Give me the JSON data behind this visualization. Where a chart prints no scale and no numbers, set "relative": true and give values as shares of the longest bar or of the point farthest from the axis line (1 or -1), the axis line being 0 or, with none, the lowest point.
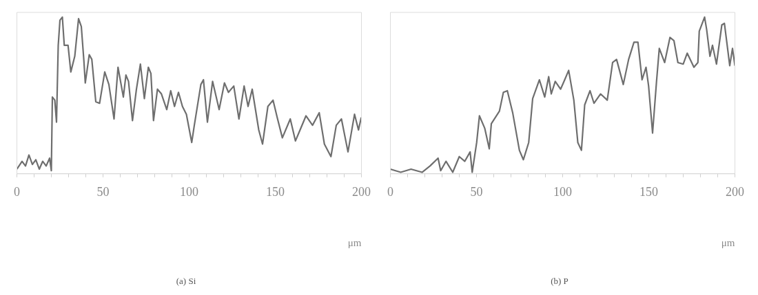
{
  "chart_data": [
    {
      "type": "line",
      "title": "(a) Si",
      "xlabel": "μm",
      "relative": true,
      "xlim": [
        0,
        200
      ],
      "xticks": [
        0,
        {
          "value": 10,
          "label": null
        },
        {
          "value": 20,
          "label": null
        },
        {
          "value": 30,
          "label": null
        },
        {
          "value": 40,
          "label": null
        },
        50,
        {
          "value": 60,
          "label": null
        },
        {
          "value": 70,
          "label": null
        },
        {
          "value": 80,
          "label": null
        },
        {
          "value": 90,
          "label": null
        },
        100,
        {
          "value": 110,
          "label": null
        },
        {
          "value": 120,
          "label": null
        },
        {
          "value": 130,
          "label": null
        },
        {
          "value": 140,
          "label": null
        },
        150,
        {
          "value": 160,
          "label": null
        },
        {
          "value": 170,
          "label": null
        },
        {
          "value": 180,
          "label": null
        },
        {
          "value": 190,
          "label": null
        },
        200
      ],
      "grid": false,
      "legend": false,
      "marker": "none",
      "line_style": "solid",
      "series": [
        {
          "color": "#6e6e6e",
          "x": [
            0,
            3,
            5,
            7,
            9,
            11,
            13,
            15,
            17,
            19,
            20,
            20.6,
            22,
            23,
            24,
            25,
            26.4,
            27.5,
            29.7,
            31.3,
            33.6,
            35.8,
            37.4,
            38.9,
            39.7,
            42,
            43.5,
            45.8,
            48,
            51,
            53.4,
            56.4,
            58.7,
            61.8,
            63.3,
            64.8,
            67.1,
            69.4,
            71.7,
            74,
            76.3,
            77.8,
            79.3,
            81.6,
            83.9,
            87,
            89.3,
            91.5,
            93.8,
            96.1,
            98.4,
            101.5,
            103,
            106.8,
            108.3,
            110.6,
            113.6,
            117.4,
            120.5,
            122.8,
            125.9,
            128.9,
            131.9,
            134.2,
            136.6,
            140.4,
            142.6,
            145.7,
            148.7,
            151.1,
            154.1,
            158.7,
            161.7,
            164,
            167.8,
            171.6,
            175.5,
            178.5,
            182.3,
            185.4,
            188.4,
            192.2,
            196,
            198.3,
            199.9
          ],
          "values": [
            0.03,
            0.08,
            0.05,
            0.12,
            0.06,
            0.09,
            0.03,
            0.08,
            0.05,
            0.1,
            0.02,
            0.49,
            0.47,
            0.33,
            0.82,
            0.98,
            1.0,
            0.82,
            0.82,
            0.65,
            0.75,
            0.99,
            0.94,
            0.72,
            0.58,
            0.76,
            0.73,
            0.46,
            0.45,
            0.65,
            0.57,
            0.35,
            0.68,
            0.49,
            0.63,
            0.59,
            0.34,
            0.54,
            0.7,
            0.48,
            0.68,
            0.64,
            0.34,
            0.54,
            0.51,
            0.41,
            0.53,
            0.43,
            0.52,
            0.43,
            0.38,
            0.2,
            0.31,
            0.57,
            0.6,
            0.33,
            0.59,
            0.41,
            0.58,
            0.52,
            0.56,
            0.35,
            0.56,
            0.43,
            0.54,
            0.28,
            0.19,
            0.43,
            0.47,
            0.36,
            0.23,
            0.35,
            0.21,
            0.27,
            0.37,
            0.31,
            0.39,
            0.19,
            0.11,
            0.31,
            0.35,
            0.14,
            0.38,
            0.28,
            0.36
          ]
        }
      ]
    },
    {
      "type": "line",
      "title": "(b) P",
      "xlabel": "μm",
      "relative": true,
      "xlim": [
        0,
        200
      ],
      "xticks": [
        0,
        {
          "value": 10,
          "label": null
        },
        {
          "value": 20,
          "label": null
        },
        {
          "value": 30,
          "label": null
        },
        {
          "value": 40,
          "label": null
        },
        50,
        {
          "value": 60,
          "label": null
        },
        {
          "value": 70,
          "label": null
        },
        {
          "value": 80,
          "label": null
        },
        {
          "value": 90,
          "label": null
        },
        100,
        {
          "value": 110,
          "label": null
        },
        {
          "value": 120,
          "label": null
        },
        {
          "value": 130,
          "label": null
        },
        {
          "value": 140,
          "label": null
        },
        150,
        {
          "value": 160,
          "label": null
        },
        {
          "value": 170,
          "label": null
        },
        {
          "value": 180,
          "label": null
        },
        {
          "value": 190,
          "label": null
        },
        200
      ],
      "grid": false,
      "legend": false,
      "marker": "none",
      "line_style": "solid",
      "series": [
        {
          "color": "#6e6e6e",
          "x": [
            0,
            6,
            12,
            18.4,
            23,
            27.7,
            29.2,
            32.3,
            36.2,
            40,
            43.2,
            46.3,
            47.5,
            50.1,
            51.7,
            54.8,
            57.4,
            58.6,
            63.3,
            65.6,
            67.9,
            71,
            74.9,
            77.2,
            80.3,
            82.6,
            86.5,
            89.6,
            91.9,
            93.4,
            95.7,
            98.8,
            101.2,
            103.5,
            106.5,
            108.8,
            110.9,
            112.8,
            115.9,
            118.2,
            122,
            125.9,
            129,
            131.3,
            135.2,
            138.3,
            141.4,
            143.7,
            146.1,
            148.4,
            149.9,
            152.2,
            154.5,
            156.1,
            159.2,
            162.3,
            164.6,
            166.9,
            170,
            172.3,
            176.2,
            178.5,
            179.3,
            182.4,
            183.6,
            185.5,
            187,
            189.3,
            192.4,
            193.9,
            197,
            198.6,
            200
          ],
          "values": [
            0.03,
            0.01,
            0.03,
            0.01,
            0.05,
            0.1,
            0.02,
            0.08,
            0.01,
            0.11,
            0.08,
            0.14,
            0.01,
            0.2,
            0.37,
            0.29,
            0.16,
            0.32,
            0.4,
            0.52,
            0.53,
            0.39,
            0.15,
            0.09,
            0.2,
            0.48,
            0.6,
            0.49,
            0.62,
            0.51,
            0.59,
            0.54,
            0.6,
            0.66,
            0.47,
            0.2,
            0.15,
            0.44,
            0.53,
            0.45,
            0.51,
            0.47,
            0.71,
            0.73,
            0.57,
            0.73,
            0.84,
            0.84,
            0.6,
            0.68,
            0.56,
            0.26,
            0.59,
            0.8,
            0.71,
            0.87,
            0.85,
            0.71,
            0.7,
            0.77,
            0.68,
            0.71,
            0.91,
            1.0,
            0.92,
            0.75,
            0.82,
            0.7,
            0.95,
            0.96,
            0.69,
            0.8,
            0.69
          ]
        }
      ]
    }
  ]
}
